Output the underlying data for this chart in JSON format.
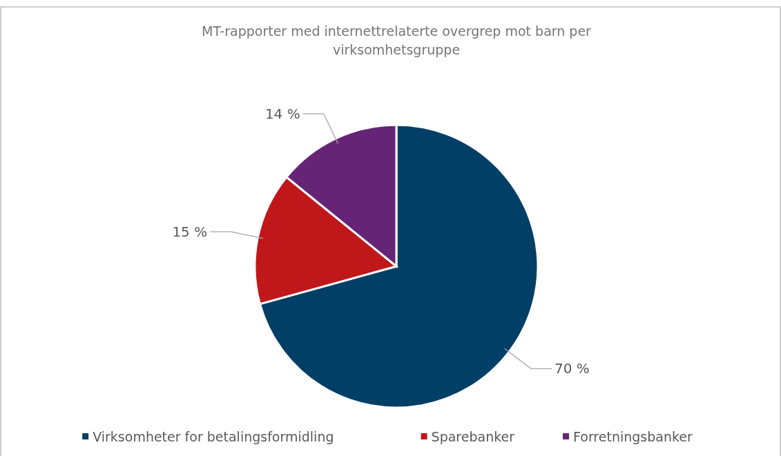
{
  "chart_data": {
    "type": "pie",
    "title": "MT-rapporter med internettrelaterte overgrep mot barn per virksomhetsgruppe",
    "categories": [
      "Virksomheter for betalingsformidling",
      "Sparebanker",
      "Forretningsbanker"
    ],
    "values": [
      70,
      15,
      14
    ],
    "colors": [
      "#023f66",
      "#c0171a",
      "#662477"
    ],
    "value_labels": [
      "70 %",
      "15 %",
      "14 %"
    ],
    "legend": "bottom"
  }
}
